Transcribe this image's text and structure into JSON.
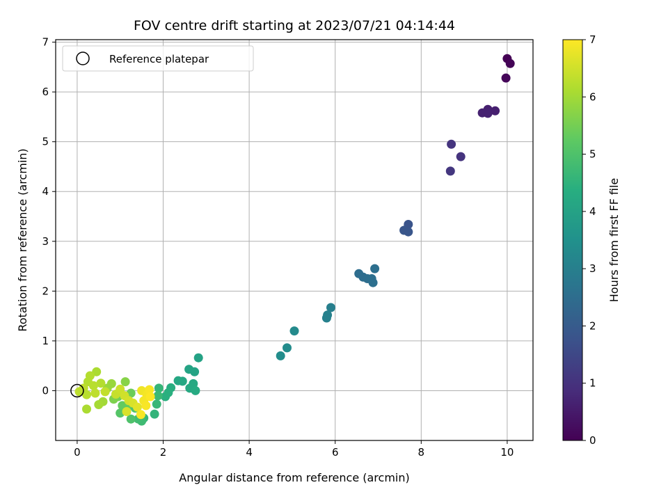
{
  "chart_data": {
    "type": "scatter",
    "title": "FOV centre drift starting at 2023/07/21 04:14:44",
    "xlabel": "Angular distance from reference (arcmin)",
    "ylabel": "Rotation from reference (arcmin)",
    "xlim": [
      -0.5,
      10.6
    ],
    "ylim": [
      -1.0,
      7.05
    ],
    "xticks": [
      "0",
      "2",
      "4",
      "6",
      "8",
      "10"
    ],
    "xtick_values": [
      0,
      2,
      4,
      6,
      8,
      10
    ],
    "yticks": [
      "0",
      "1",
      "2",
      "3",
      "4",
      "5",
      "6",
      "7"
    ],
    "ytick_values": [
      0,
      1,
      2,
      3,
      4,
      5,
      6,
      7
    ],
    "grid": true,
    "legend": {
      "placement": "top-left",
      "entries": [
        {
          "label": "Reference platepar",
          "marker": "open-circle",
          "x": 0,
          "y": 0
        }
      ]
    },
    "colorbar": {
      "label": "Hours from first FF file",
      "colormap": "viridis",
      "range": [
        0,
        7
      ],
      "ticks": [
        "0",
        "1",
        "2",
        "3",
        "4",
        "5",
        "6",
        "7"
      ],
      "tick_values": [
        0,
        1,
        2,
        3,
        4,
        5,
        6,
        7
      ]
    },
    "points": [
      {
        "x": 10.0,
        "y": 6.67,
        "c": 0.0
      },
      {
        "x": 10.07,
        "y": 6.57,
        "c": 0.05
      },
      {
        "x": 9.97,
        "y": 6.28,
        "c": 0.1
      },
      {
        "x": 9.55,
        "y": 5.65,
        "c": 0.6
      },
      {
        "x": 9.42,
        "y": 5.58,
        "c": 0.65
      },
      {
        "x": 9.55,
        "y": 5.57,
        "c": 0.65
      },
      {
        "x": 9.72,
        "y": 5.62,
        "c": 0.6
      },
      {
        "x": 8.7,
        "y": 4.95,
        "c": 1.05
      },
      {
        "x": 8.92,
        "y": 4.7,
        "c": 1.05
      },
      {
        "x": 8.68,
        "y": 4.41,
        "c": 1.1
      },
      {
        "x": 7.7,
        "y": 3.34,
        "c": 1.8
      },
      {
        "x": 7.6,
        "y": 3.22,
        "c": 1.85
      },
      {
        "x": 7.7,
        "y": 3.19,
        "c": 1.85
      },
      {
        "x": 6.55,
        "y": 2.35,
        "c": 2.5
      },
      {
        "x": 6.65,
        "y": 2.28,
        "c": 2.5
      },
      {
        "x": 6.75,
        "y": 2.25,
        "c": 2.52
      },
      {
        "x": 6.85,
        "y": 2.25,
        "c": 2.55
      },
      {
        "x": 6.88,
        "y": 2.17,
        "c": 2.55
      },
      {
        "x": 6.92,
        "y": 2.45,
        "c": 2.55
      },
      {
        "x": 5.9,
        "y": 1.67,
        "c": 3.0
      },
      {
        "x": 5.82,
        "y": 1.52,
        "c": 3.05
      },
      {
        "x": 5.8,
        "y": 1.46,
        "c": 3.05
      },
      {
        "x": 5.05,
        "y": 1.2,
        "c": 3.3
      },
      {
        "x": 4.88,
        "y": 0.86,
        "c": 3.35
      },
      {
        "x": 4.73,
        "y": 0.7,
        "c": 3.4
      },
      {
        "x": 2.82,
        "y": 0.66,
        "c": 4.0
      },
      {
        "x": 2.6,
        "y": 0.43,
        "c": 4.05
      },
      {
        "x": 2.73,
        "y": 0.38,
        "c": 4.05
      },
      {
        "x": 2.35,
        "y": 0.2,
        "c": 4.15
      },
      {
        "x": 2.45,
        "y": 0.19,
        "c": 4.15
      },
      {
        "x": 2.7,
        "y": 0.14,
        "c": 4.2
      },
      {
        "x": 2.62,
        "y": 0.05,
        "c": 4.2
      },
      {
        "x": 2.75,
        "y": 0.0,
        "c": 4.25
      },
      {
        "x": 2.18,
        "y": 0.06,
        "c": 4.35
      },
      {
        "x": 2.12,
        "y": -0.04,
        "c": 4.4
      },
      {
        "x": 2.05,
        "y": -0.12,
        "c": 4.4
      },
      {
        "x": 1.9,
        "y": 0.05,
        "c": 4.6
      },
      {
        "x": 1.88,
        "y": -0.1,
        "c": 4.7
      },
      {
        "x": 1.85,
        "y": -0.27,
        "c": 4.65
      },
      {
        "x": 1.8,
        "y": -0.47,
        "c": 4.55
      },
      {
        "x": 1.55,
        "y": -0.55,
        "c": 4.6
      },
      {
        "x": 1.5,
        "y": -0.61,
        "c": 4.75
      },
      {
        "x": 1.42,
        "y": -0.57,
        "c": 4.8
      },
      {
        "x": 1.25,
        "y": -0.57,
        "c": 5.0
      },
      {
        "x": 1.0,
        "y": -0.45,
        "c": 5.1
      },
      {
        "x": 1.05,
        "y": -0.3,
        "c": 5.3
      },
      {
        "x": 1.2,
        "y": -0.3,
        "c": 5.3
      },
      {
        "x": 1.35,
        "y": -0.35,
        "c": 5.0
      },
      {
        "x": 0.95,
        "y": -0.12,
        "c": 5.5
      },
      {
        "x": 0.85,
        "y": -0.17,
        "c": 5.6
      },
      {
        "x": 1.12,
        "y": 0.18,
        "c": 5.7
      },
      {
        "x": 1.25,
        "y": -0.05,
        "c": 5.4
      },
      {
        "x": 0.8,
        "y": 0.14,
        "c": 5.9
      },
      {
        "x": 0.7,
        "y": 0.05,
        "c": 5.9
      },
      {
        "x": 0.6,
        "y": -0.22,
        "c": 6.0
      },
      {
        "x": 0.5,
        "y": -0.28,
        "c": 6.05
      },
      {
        "x": 0.45,
        "y": 0.38,
        "c": 6.1
      },
      {
        "x": 0.3,
        "y": 0.3,
        "c": 6.2
      },
      {
        "x": 0.25,
        "y": 0.18,
        "c": 6.2
      },
      {
        "x": 0.55,
        "y": 0.15,
        "c": 6.2
      },
      {
        "x": 0.38,
        "y": 0.1,
        "c": 6.25
      },
      {
        "x": 0.15,
        "y": 0.05,
        "c": 6.3
      },
      {
        "x": 0.05,
        "y": -0.02,
        "c": 6.3
      },
      {
        "x": 0.22,
        "y": -0.08,
        "c": 6.25
      },
      {
        "x": 0.22,
        "y": -0.37,
        "c": 6.1
      },
      {
        "x": 0.42,
        "y": -0.05,
        "c": 6.3
      },
      {
        "x": 0.65,
        "y": -0.02,
        "c": 6.35
      },
      {
        "x": 0.9,
        "y": -0.07,
        "c": 6.4
      },
      {
        "x": 1.0,
        "y": 0.03,
        "c": 6.45
      },
      {
        "x": 1.1,
        "y": -0.1,
        "c": 6.5
      },
      {
        "x": 1.2,
        "y": -0.2,
        "c": 6.55
      },
      {
        "x": 1.3,
        "y": -0.25,
        "c": 6.6
      },
      {
        "x": 1.15,
        "y": -0.42,
        "c": 6.6
      },
      {
        "x": 1.4,
        "y": -0.33,
        "c": 6.7
      },
      {
        "x": 1.5,
        "y": 0.0,
        "c": 6.85
      },
      {
        "x": 1.55,
        "y": -0.2,
        "c": 6.9
      },
      {
        "x": 1.62,
        "y": -0.08,
        "c": 6.9
      },
      {
        "x": 1.68,
        "y": 0.02,
        "c": 6.95
      },
      {
        "x": 1.7,
        "y": -0.12,
        "c": 7.0
      },
      {
        "x": 1.48,
        "y": -0.48,
        "c": 6.95
      },
      {
        "x": 1.6,
        "y": -0.3,
        "c": 6.95
      }
    ]
  }
}
